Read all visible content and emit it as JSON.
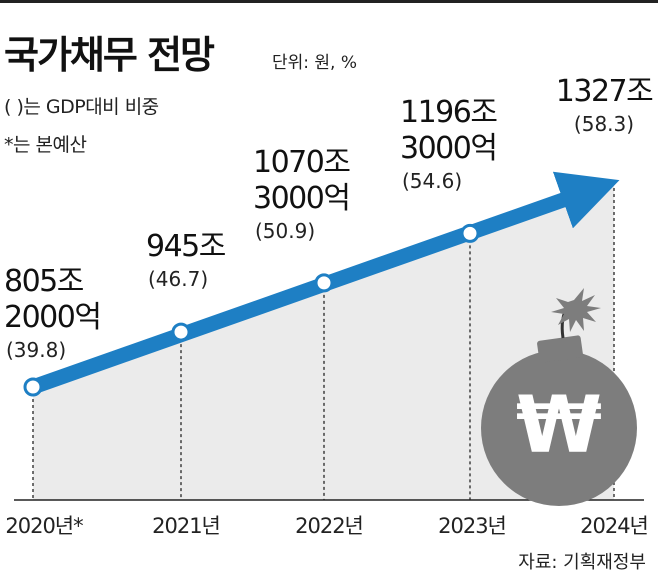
{
  "header": {
    "title": "국가채무 전망",
    "unit": "단위: 원, %",
    "note_ratio": "( )는 GDP대비 비중",
    "note_budget": "*는 본예산"
  },
  "source": "자료: 기획재정부",
  "colors": {
    "line": "#1e7fc4",
    "point_fill": "#ffffff",
    "area": "#ebebeb",
    "bomb": "#7d7d7d",
    "text": "#222222"
  },
  "icons": {
    "bomb": "bomb-won-icon",
    "won": "won-sign"
  },
  "chart_data": {
    "type": "line",
    "title": "국가채무 전망",
    "categories": [
      "2020년*",
      "2021년",
      "2022년",
      "2023년",
      "2024년"
    ],
    "series": [
      {
        "name": "국가채무",
        "values": [
          805.2,
          945,
          1070.3,
          1196.3,
          1327
        ],
        "unit": "조 원"
      },
      {
        "name": "GDP대비 비중",
        "values": [
          39.8,
          46.7,
          50.9,
          54.6,
          58.3
        ],
        "unit": "%"
      }
    ],
    "value_labels": [
      [
        "805조",
        "2000억"
      ],
      [
        "945조"
      ],
      [
        "1070조",
        "3000억"
      ],
      [
        "1196조",
        "3000억"
      ],
      [
        "1327조"
      ]
    ],
    "ratio_labels": [
      "(39.8)",
      "(46.7)",
      "(50.9)",
      "(54.6)",
      "(58.3)"
    ],
    "ylim": [
      0,
      1400
    ],
    "grid": false,
    "area_fill": true
  }
}
